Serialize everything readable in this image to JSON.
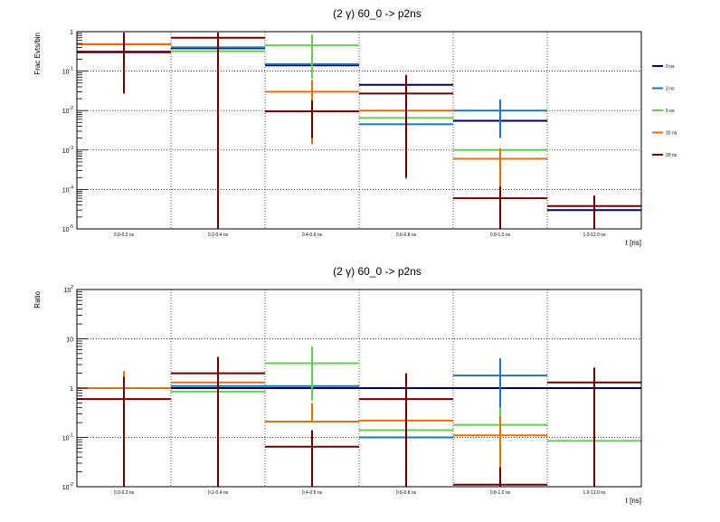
{
  "chart_data": [
    {
      "type": "step-errorbar",
      "title": "(2 γ) 60_0 -> p2ns",
      "xlabel": "t [ns]",
      "ylabel": "Frac Evts/bin",
      "yscale": "log",
      "ylim": [
        1e-05,
        1
      ],
      "yticks": [
        {
          "v": 1e-05,
          "base": "10",
          "exp": "-5"
        },
        {
          "v": 0.0001,
          "base": "10",
          "exp": "-4"
        },
        {
          "v": 0.001,
          "base": "10",
          "exp": "-3"
        },
        {
          "v": 0.01,
          "base": "10",
          "exp": "-2"
        },
        {
          "v": 0.1,
          "base": "10",
          "exp": "-1"
        },
        {
          "v": 1,
          "base": "1",
          "exp": ""
        }
      ],
      "categories": [
        "0.0-0.2 ns",
        "0.2-0.4 ns",
        "0.4-0.6 ns",
        "0.6-0.8 ns",
        "0.8-1.0 ns",
        "1.0-12.0 ns"
      ],
      "grid": true,
      "legend_position": "right",
      "series": [
        {
          "name": "0 ns",
          "color": "#000060",
          "values": [
            0.3,
            0.38,
            0.14,
            0.045,
            0.0055,
            3e-05
          ],
          "err_lo": [
            null,
            null,
            null,
            null,
            null,
            null
          ],
          "err_hi": [
            null,
            null,
            null,
            null,
            null,
            null
          ]
        },
        {
          "name": "2 ns",
          "color": "#1f77b4",
          "values": [
            0.48,
            0.4,
            0.15,
            0.0045,
            0.01,
            null
          ],
          "err_lo": [
            null,
            null,
            null,
            null,
            0.002,
            null
          ],
          "err_hi": [
            null,
            null,
            null,
            null,
            0.019,
            null
          ]
        },
        {
          "name": "5 ns",
          "color": "#66cc55",
          "values": [
            null,
            0.32,
            0.45,
            0.0065,
            0.001,
            null
          ],
          "err_lo": [
            null,
            null,
            0.065,
            0.00018,
            null,
            null
          ],
          "err_hi": [
            null,
            null,
            0.85,
            null,
            null,
            null
          ]
        },
        {
          "name": "10 ns",
          "color": "#e07010",
          "values": [
            0.48,
            null,
            0.03,
            0.01,
            0.0006,
            null
          ],
          "err_lo": [
            0.04,
            null,
            0.0014,
            null,
            9e-05,
            null
          ],
          "err_hi": [
            0.95,
            null,
            0.06,
            null,
            0.0011,
            null
          ]
        },
        {
          "name": "20 ns",
          "color": "#6b0000",
          "values": [
            0.31,
            0.7,
            0.0095,
            0.027,
            6e-05,
            3.8e-05
          ],
          "err_lo": [
            0.027,
            1e-05,
            0.002,
            0.0002,
            1e-05,
            1e-05
          ],
          "err_hi": [
            0.95,
            0.95,
            0.018,
            0.08,
            0.00012,
            7e-05
          ]
        }
      ]
    },
    {
      "type": "step-errorbar",
      "title": "(2 γ) 60_0 -> p2ns",
      "xlabel": "t [ns]",
      "ylabel": "Ratio",
      "yscale": "log",
      "ylim": [
        0.01,
        100
      ],
      "yticks": [
        {
          "v": 0.01,
          "base": "10",
          "exp": "-2"
        },
        {
          "v": 0.1,
          "base": "10",
          "exp": "-1"
        },
        {
          "v": 1,
          "base": "1",
          "exp": ""
        },
        {
          "v": 10,
          "base": "10",
          "exp": ""
        },
        {
          "v": 100,
          "base": "10",
          "exp": "2"
        }
      ],
      "categories": [
        "0.0-0.2 ns",
        "0.2-0.4 ns",
        "0.4-0.6 ns",
        "0.6-0.8 ns",
        "0.8-1.0 ns",
        "1.0-12.0 ns"
      ],
      "grid": true,
      "series": [
        {
          "name": "0 ns",
          "color": "#000060",
          "values": [
            null,
            1.0,
            1.0,
            1.0,
            1.0,
            1.0
          ],
          "err_lo": [
            null,
            null,
            null,
            null,
            null,
            null
          ],
          "err_hi": [
            null,
            null,
            null,
            null,
            null,
            null
          ]
        },
        {
          "name": "2 ns",
          "color": "#1f77b4",
          "values": [
            null,
            1.1,
            1.1,
            0.1,
            1.8,
            null
          ],
          "err_lo": [
            null,
            null,
            null,
            null,
            0.4,
            null
          ],
          "err_hi": [
            null,
            null,
            null,
            null,
            4.0,
            null
          ]
        },
        {
          "name": "5 ns",
          "color": "#66cc55",
          "values": [
            null,
            0.85,
            3.2,
            0.14,
            0.18,
            0.085
          ],
          "err_lo": [
            null,
            null,
            0.55,
            null,
            null,
            null
          ],
          "err_hi": [
            null,
            null,
            7.0,
            null,
            0.4,
            null
          ]
        },
        {
          "name": "10 ns",
          "color": "#e07010",
          "values": [
            1.0,
            1.3,
            0.21,
            0.22,
            0.11,
            null
          ],
          "err_lo": [
            0.01,
            null,
            null,
            null,
            0.025,
            null
          ],
          "err_hi": [
            2.2,
            null,
            0.5,
            null,
            0.27,
            null
          ]
        },
        {
          "name": "20 ns",
          "color": "#6b0000",
          "values": [
            0.6,
            2.0,
            0.065,
            0.6,
            0.011,
            1.3
          ],
          "err_lo": [
            0.01,
            0.01,
            0.01,
            0.01,
            0.01,
            0.01
          ],
          "err_hi": [
            1.7,
            4.3,
            0.14,
            2.0,
            0.025,
            2.6
          ]
        }
      ]
    }
  ]
}
